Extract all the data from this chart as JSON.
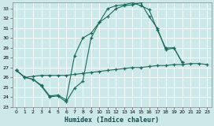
{
  "xlabel": "Humidex (Indice chaleur)",
  "bg_color": "#cce8e8",
  "line_color": "#1a6b5a",
  "grid_color": "#ffffff",
  "grid_line_color": "#b8d8d8",
  "xlim": [
    -0.5,
    23.5
  ],
  "ylim": [
    23,
    33.6
  ],
  "yticks": [
    23,
    24,
    25,
    26,
    27,
    28,
    29,
    30,
    31,
    32,
    33
  ],
  "xticks": [
    0,
    1,
    2,
    3,
    4,
    5,
    6,
    7,
    8,
    9,
    10,
    11,
    12,
    13,
    14,
    15,
    16,
    17,
    18,
    19,
    20,
    21,
    22,
    23
  ],
  "series": [
    {
      "x": [
        0,
        1,
        2,
        3,
        4,
        5,
        6,
        7,
        8,
        9,
        10,
        11,
        12,
        13,
        14,
        15,
        16,
        17,
        18,
        19,
        20
      ],
      "y": [
        26.7,
        26.0,
        25.8,
        25.1,
        24.0,
        24.1,
        23.5,
        24.9,
        25.6,
        30.0,
        31.6,
        32.2,
        33.0,
        33.3,
        33.4,
        33.6,
        32.2,
        31.0,
        28.8,
        29.0,
        27.5
      ]
    },
    {
      "x": [
        0,
        1,
        2,
        3,
        4,
        5,
        6,
        7,
        8,
        9,
        10,
        11,
        12,
        13,
        14,
        15,
        16,
        17,
        18,
        19,
        20
      ],
      "y": [
        26.7,
        26.0,
        25.8,
        25.2,
        24.1,
        24.2,
        23.7,
        28.2,
        30.0,
        30.5,
        31.6,
        33.0,
        33.3,
        33.4,
        33.6,
        33.3,
        32.9,
        30.8,
        29.0,
        29.0,
        27.5
      ]
    },
    {
      "x": [
        0,
        1,
        2,
        3,
        4,
        5,
        6,
        7,
        8,
        9,
        10,
        11,
        12,
        13,
        14,
        15,
        16,
        17,
        18,
        19,
        20,
        21,
        22,
        23
      ],
      "y": [
        26.7,
        26.0,
        26.1,
        26.2,
        26.2,
        26.2,
        26.2,
        26.3,
        26.4,
        26.5,
        26.6,
        26.7,
        26.8,
        26.9,
        27.0,
        27.0,
        27.1,
        27.2,
        27.2,
        27.3,
        27.3,
        27.4,
        27.4,
        27.3
      ]
    }
  ]
}
